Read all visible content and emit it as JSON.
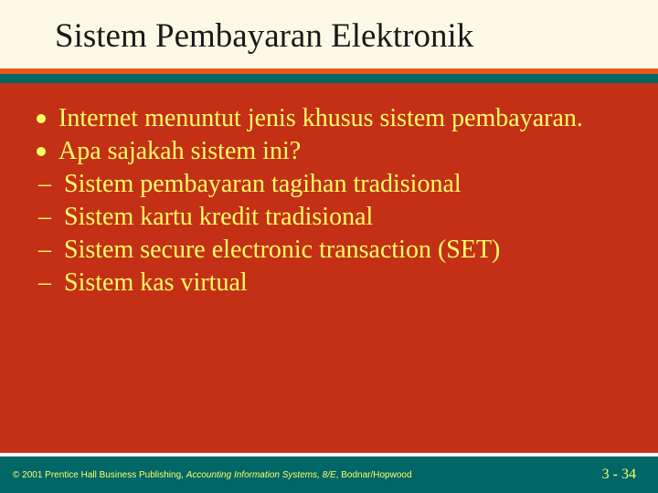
{
  "colors": {
    "title_bg": "#fcfae6",
    "title_text": "#1a1a1a",
    "stripe_orange": "#e95a17",
    "stripe_teal": "#006666",
    "content_bg": "#c33016",
    "content_text": "#ffff66",
    "bullet_dot": "#ffff66",
    "dash_color": "#ffff66",
    "footer_bg": "#006666",
    "footer_text": "#ffff66"
  },
  "typography": {
    "title_fontsize": 37,
    "body_fontsize": 28,
    "footer_copy_fontsize": 10,
    "footer_page_fontsize": 16
  },
  "title": "Sistem Pembayaran Elektronik",
  "bullets": [
    {
      "kind": "dot",
      "text": "Internet menuntut jenis khusus sistem pembayaran."
    },
    {
      "kind": "dot",
      "text": "Apa sajakah sistem ini?"
    },
    {
      "kind": "dash",
      "text": "Sistem pembayaran tagihan tradisional"
    },
    {
      "kind": "dash",
      "text": "Sistem kartu kredit tradisional"
    },
    {
      "kind": "dash",
      "text": "Sistem secure electronic transaction (SET)"
    },
    {
      "kind": "dash",
      "text": "Sistem kas virtual"
    }
  ],
  "footer": {
    "copyright_prefix": "© 2001 Prentice Hall Business Publishing, ",
    "copyright_italic": "Accounting Information Systems, 8/E",
    "copyright_suffix": ", Bodnar/Hopwood",
    "page": "3 - 34"
  }
}
